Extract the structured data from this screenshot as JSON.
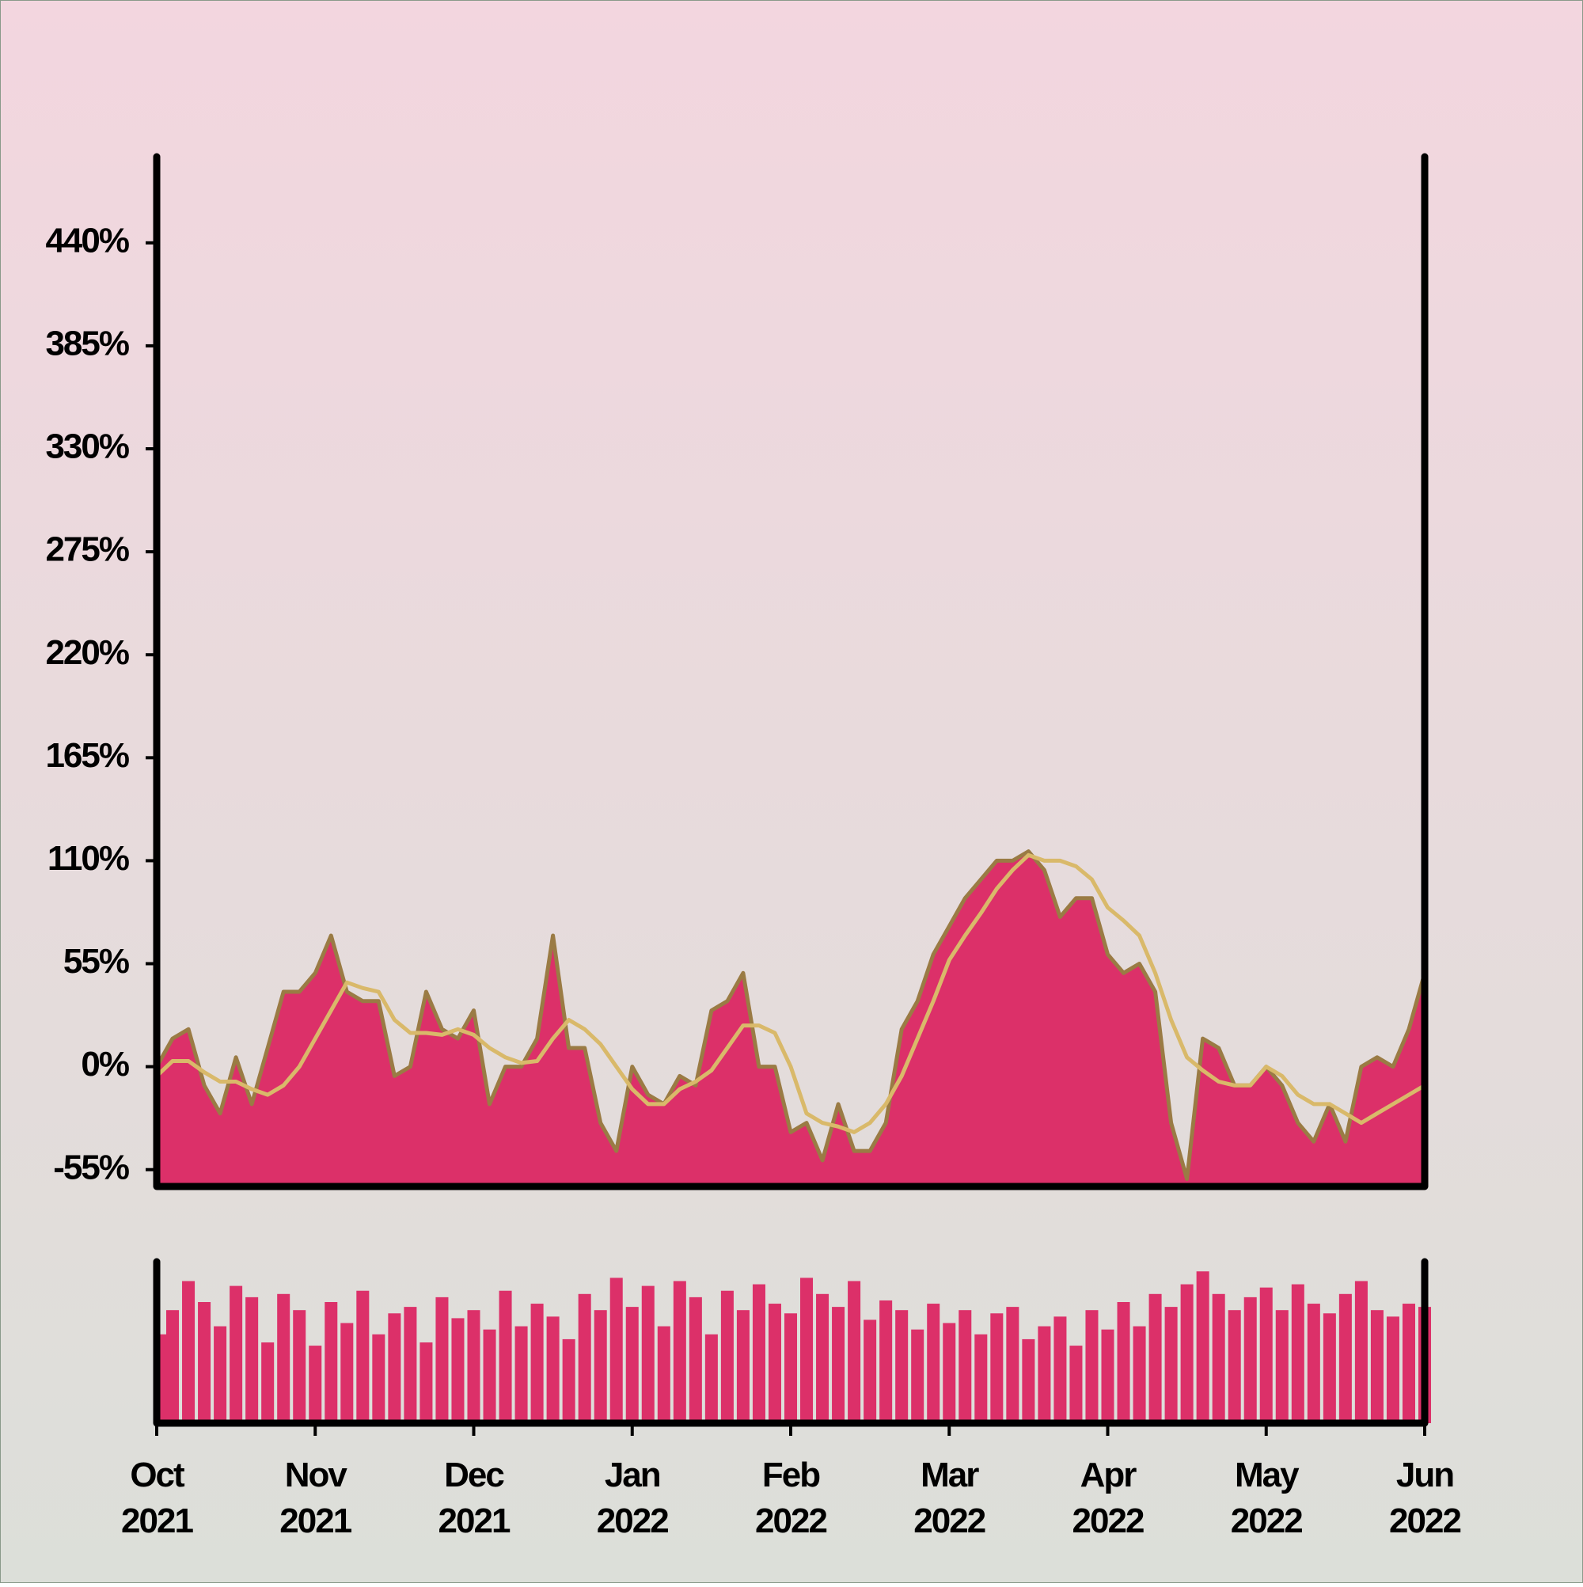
{
  "chart_data": [
    {
      "type": "area",
      "xlim": [
        0,
        8
      ],
      "ylim": [
        -64,
        486
      ],
      "yticks": [
        {
          "value": -55,
          "label": "-55%"
        },
        {
          "value": 0,
          "label": "0%"
        },
        {
          "value": 55,
          "label": "55%"
        },
        {
          "value": 110,
          "label": "110%"
        },
        {
          "value": 165,
          "label": "165%"
        },
        {
          "value": 220,
          "label": "220%"
        },
        {
          "value": 275,
          "label": "275%"
        },
        {
          "value": 330,
          "label": "330%"
        },
        {
          "value": 385,
          "label": "385%"
        },
        {
          "value": 440,
          "label": "440%"
        }
      ],
      "x": [
        0,
        0.1,
        0.2,
        0.3,
        0.4,
        0.5,
        0.6,
        0.7,
        0.8,
        0.9,
        1,
        1.1,
        1.2,
        1.3,
        1.4,
        1.5,
        1.6,
        1.7,
        1.8,
        1.9,
        2,
        2.1,
        2.2,
        2.3,
        2.4,
        2.5,
        2.6,
        2.7,
        2.8,
        2.9,
        3,
        3.1,
        3.2,
        3.3,
        3.4,
        3.5,
        3.6,
        3.7,
        3.8,
        3.9,
        4,
        4.1,
        4.2,
        4.3,
        4.4,
        4.5,
        4.6,
        4.7,
        4.8,
        4.9,
        5,
        5.1,
        5.2,
        5.3,
        5.4,
        5.5,
        5.6,
        5.7,
        5.8,
        5.9,
        6,
        6.1,
        6.2,
        6.3,
        6.4,
        6.5,
        6.6,
        6.7,
        6.8,
        6.9,
        7,
        7.1,
        7.2,
        7.3,
        7.4,
        7.5,
        7.6,
        7.7,
        7.8,
        7.9,
        8
      ],
      "series": [
        {
          "type": "area",
          "color": "#dc3069",
          "edge_color": "#9a7b44",
          "values": [
            0,
            15,
            20,
            -10,
            -25,
            5,
            -20,
            10,
            40,
            40,
            50,
            70,
            40,
            35,
            35,
            -5,
            0,
            40,
            20,
            15,
            30,
            -20,
            0,
            0,
            15,
            70,
            10,
            10,
            -30,
            -45,
            0,
            -15,
            -20,
            -5,
            -10,
            30,
            35,
            50,
            0,
            0,
            -35,
            -30,
            -50,
            -20,
            -45,
            -45,
            -30,
            20,
            35,
            60,
            75,
            90,
            100,
            110,
            110,
            115,
            105,
            80,
            90,
            90,
            60,
            50,
            55,
            40,
            -30,
            -60,
            15,
            10,
            -10,
            -10,
            0,
            -10,
            -30,
            -40,
            -20,
            -40,
            0,
            5,
            0,
            20,
            50
          ]
        },
        {
          "type": "line",
          "color": "#d9b96a",
          "values": [
            -5,
            3,
            3,
            -3,
            -8,
            -8,
            -12,
            -15,
            -10,
            0,
            15,
            30,
            45,
            42,
            40,
            25,
            18,
            18,
            17,
            20,
            17,
            10,
            5,
            2,
            3,
            15,
            25,
            20,
            12,
            0,
            -12,
            -20,
            -20,
            -12,
            -8,
            -2,
            10,
            22,
            22,
            18,
            0,
            -25,
            -30,
            -32,
            -35,
            -30,
            -20,
            -5,
            15,
            35,
            57,
            70,
            82,
            95,
            105,
            113,
            110,
            110,
            107,
            100,
            85,
            78,
            70,
            50,
            25,
            5,
            -2,
            -8,
            -10,
            -10,
            0,
            -5,
            -15,
            -20,
            -20,
            -25,
            -30,
            -25,
            -20,
            -15,
            -10
          ]
        }
      ]
    },
    {
      "type": "bar",
      "color": "#dc3069",
      "xlim": [
        0,
        8
      ],
      "ylim": [
        0,
        100
      ],
      "xticks": [
        {
          "value": 0,
          "label": "Oct 2021"
        },
        {
          "value": 1,
          "label": "Nov 2021"
        },
        {
          "value": 2,
          "label": "Dec 2021"
        },
        {
          "value": 3,
          "label": "Jan 2022"
        },
        {
          "value": 4,
          "label": "Feb 2022"
        },
        {
          "value": 5,
          "label": "Mar 2022"
        },
        {
          "value": 6,
          "label": "Apr 2022"
        },
        {
          "value": 7,
          "label": "May 2022"
        },
        {
          "value": 8,
          "label": "Jun 2022"
        }
      ],
      "x": [
        0,
        0.1,
        0.2,
        0.3,
        0.4,
        0.5,
        0.6,
        0.7,
        0.8,
        0.9,
        1,
        1.1,
        1.2,
        1.3,
        1.4,
        1.5,
        1.6,
        1.7,
        1.8,
        1.9,
        2,
        2.1,
        2.2,
        2.3,
        2.4,
        2.5,
        2.6,
        2.7,
        2.8,
        2.9,
        3,
        3.1,
        3.2,
        3.3,
        3.4,
        3.5,
        3.6,
        3.7,
        3.8,
        3.9,
        4,
        4.1,
        4.2,
        4.3,
        4.4,
        4.5,
        4.6,
        4.7,
        4.8,
        4.9,
        5,
        5.1,
        5.2,
        5.3,
        5.4,
        5.5,
        5.6,
        5.7,
        5.8,
        5.9,
        6,
        6.1,
        6.2,
        6.3,
        6.4,
        6.5,
        6.6,
        6.7,
        6.8,
        6.9,
        7,
        7.1,
        7.2,
        7.3,
        7.4,
        7.5,
        7.6,
        7.7,
        7.8,
        7.9,
        8
      ],
      "values": [
        55,
        70,
        88,
        75,
        60,
        85,
        78,
        50,
        80,
        70,
        48,
        75,
        62,
        82,
        55,
        68,
        72,
        50,
        78,
        65,
        70,
        58,
        82,
        60,
        74,
        66,
        52,
        80,
        70,
        90,
        72,
        85,
        60,
        88,
        78,
        55,
        82,
        70,
        86,
        74,
        68,
        90,
        80,
        72,
        88,
        64,
        76,
        70,
        58,
        74,
        62,
        70,
        55,
        68,
        72,
        52,
        60,
        66,
        48,
        70,
        58,
        75,
        60,
        80,
        72,
        86,
        94,
        80,
        70,
        78,
        84,
        70,
        86,
        74,
        68,
        80,
        88,
        70,
        66,
        74,
        72
      ]
    }
  ]
}
